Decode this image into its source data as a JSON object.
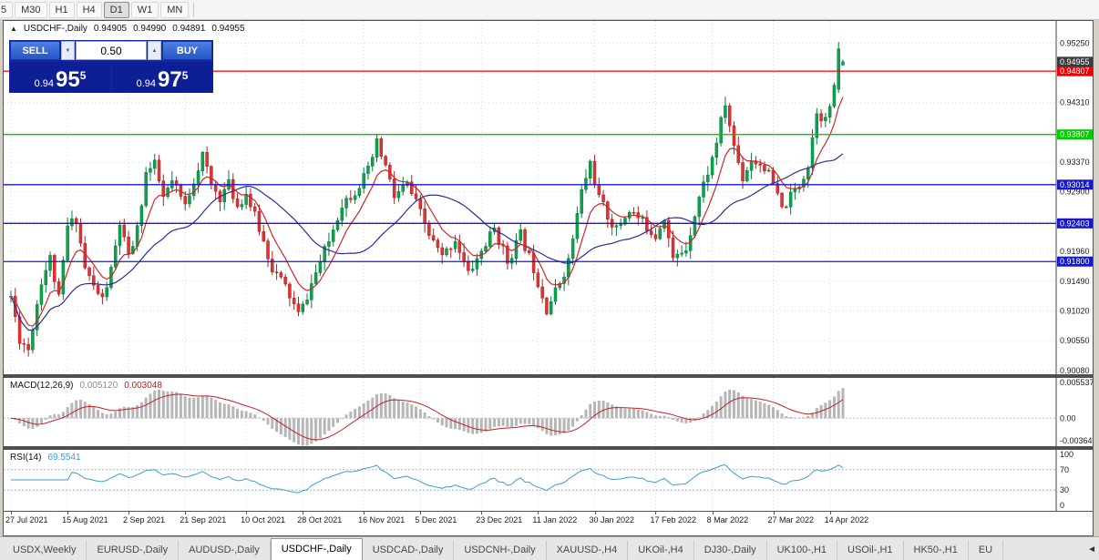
{
  "toolbar": {
    "timeframes": [
      {
        "label": "5",
        "active": false
      },
      {
        "label": "M30",
        "active": false
      },
      {
        "label": "H1",
        "active": false
      },
      {
        "label": "H4",
        "active": false
      },
      {
        "label": "D1",
        "active": true
      },
      {
        "label": "W1",
        "active": false
      },
      {
        "label": "MN",
        "active": false
      }
    ]
  },
  "one_click": {
    "collapse_icon": "▲",
    "sell_label": "SELL",
    "buy_label": "BUY",
    "volume": "0.50",
    "spin_down_icon": "▼",
    "spin_up_icon": "▲",
    "sell_price": {
      "small": "0.94",
      "big": "95",
      "sup": "5"
    },
    "buy_price": {
      "small": "0.94",
      "big": "97",
      "sup": "5"
    }
  },
  "main_pane": {
    "symbol": "USDCHF-,Daily",
    "ohlc": [
      "0.94905",
      "0.94990",
      "0.94891",
      "0.94955"
    ]
  },
  "macd_pane": {
    "label": "MACD(12,26,9)",
    "value_main": "0.005120",
    "value_signal": "0.003048",
    "axis": [
      {
        "text": "0.005537",
        "value": 0.005537
      },
      {
        "text": "0.00",
        "value": 0.0
      },
      {
        "text": "-0.00364",
        "value": -0.00364
      }
    ],
    "scale_max": 0.0062,
    "scale_min": -0.0043,
    "histogram_color": "#b6b6b6",
    "signal_color": "#c42222"
  },
  "rsi_pane": {
    "label": "RSI(14)",
    "value": "69.5541",
    "axis": [
      {
        "text": "100",
        "value": 100
      },
      {
        "text": "70",
        "value": 70
      },
      {
        "text": "30",
        "value": 30
      },
      {
        "text": "0",
        "value": 0
      }
    ],
    "levels": [
      70,
      30
    ],
    "line_color": "#3d9bd5",
    "level_color": "#9fb6cc"
  },
  "price_axis": {
    "min": 0.9002,
    "max": 0.956,
    "ticks": [
      "0.90080",
      "0.90550",
      "0.91020",
      "0.91490",
      "0.91960",
      "0.92430",
      "0.92900",
      "0.93370",
      "0.93840",
      "0.94310",
      "0.94780",
      "0.95250"
    ]
  },
  "time_axis": {
    "labels": [
      {
        "text": "27 Jul 2021",
        "bar": 0
      },
      {
        "text": "15 Aug 2021",
        "bar": 13
      },
      {
        "text": "2 Sep 2021",
        "bar": 27
      },
      {
        "text": "21 Sep 2021",
        "bar": 40
      },
      {
        "text": "10 Oct 2021",
        "bar": 54
      },
      {
        "text": "28 Oct 2021",
        "bar": 67
      },
      {
        "text": "16 Nov 2021",
        "bar": 81
      },
      {
        "text": "5 Dec 2021",
        "bar": 94
      },
      {
        "text": "23 Dec 2021",
        "bar": 108
      },
      {
        "text": "11 Jan 2022",
        "bar": 121
      },
      {
        "text": "30 Jan 2022",
        "bar": 134
      },
      {
        "text": "17 Feb 2022",
        "bar": 148
      },
      {
        "text": "8 Mar 2022",
        "bar": 161
      },
      {
        "text": "27 Mar 2022",
        "bar": 175
      },
      {
        "text": "14 Apr 2022",
        "bar": 188
      }
    ]
  },
  "hlines": [
    {
      "price": 0.94807,
      "text": "0.94807",
      "color": "#f00000"
    },
    {
      "price": 0.93807,
      "text": "0.93807",
      "color": "#00ce00"
    },
    {
      "price": 0.93014,
      "text": "0.93014",
      "color": "#1818c8"
    },
    {
      "price": 0.92403,
      "text": "0.92403",
      "color": "#1818c8"
    },
    {
      "price": 0.918,
      "text": "0.91800",
      "color": "#1818c8"
    }
  ],
  "current_price": {
    "price": 0.94955,
    "text": "0.94955",
    "color": "#3c3c3c"
  },
  "tabs": {
    "scroll_left_icon": "◄",
    "items": [
      {
        "label": "USDX,Weekly",
        "active": false
      },
      {
        "label": "EURUSD-,Daily",
        "active": false
      },
      {
        "label": "AUDUSD-,Daily",
        "active": false
      },
      {
        "label": "USDCHF-,Daily",
        "active": true
      },
      {
        "label": "USDCAD-,Daily",
        "active": false
      },
      {
        "label": "USDCNH-,Daily",
        "active": false
      },
      {
        "label": "XAUUSD-,H4",
        "active": false
      },
      {
        "label": "UKOil-,H4",
        "active": false
      },
      {
        "label": "DJ30-,Daily",
        "active": false
      },
      {
        "label": "UK100-,H1",
        "active": false
      },
      {
        "label": "USOil-,H1",
        "active": false
      },
      {
        "label": "HK50-,H1",
        "active": false
      },
      {
        "label": "EU",
        "active": false
      }
    ]
  },
  "colors": {
    "bull": "#0ca24e",
    "bull_stroke": "#087a3a",
    "bear": "#dd3333",
    "bear_stroke": "#aa2222",
    "ma_fast": "#d02828",
    "ma_slow": "#2c2c9c",
    "grid": "#d9d9d9",
    "axis_text": "#1a1a1a",
    "frame": "#444444"
  },
  "chart_data": {
    "type": "candlestick",
    "symbol": "USDCHF",
    "timeframe": "Daily",
    "title": "USDCHF-,Daily",
    "x_range": [
      "27 Jul 2021",
      "22 Apr 2022"
    ],
    "y_range": [
      0.9002,
      0.956
    ],
    "bars": 192,
    "seed": 11,
    "current_ohlc": {
      "open": 0.94905,
      "high": 0.9499,
      "low": 0.94891,
      "close": 0.94955
    },
    "close_anchors": [
      [
        0,
        0.9125
      ],
      [
        2,
        0.9058
      ],
      [
        4,
        0.9042
      ],
      [
        7,
        0.915
      ],
      [
        9,
        0.9185
      ],
      [
        11,
        0.912
      ],
      [
        13,
        0.9235
      ],
      [
        15,
        0.9248
      ],
      [
        17,
        0.917
      ],
      [
        19,
        0.914
      ],
      [
        21,
        0.912
      ],
      [
        23,
        0.9165
      ],
      [
        25,
        0.924
      ],
      [
        27,
        0.9185
      ],
      [
        29,
        0.923
      ],
      [
        31,
        0.932
      ],
      [
        33,
        0.9332
      ],
      [
        35,
        0.928
      ],
      [
        37,
        0.9305
      ],
      [
        40,
        0.9268
      ],
      [
        42,
        0.931
      ],
      [
        44,
        0.9348
      ],
      [
        46,
        0.93
      ],
      [
        48,
        0.9282
      ],
      [
        50,
        0.9302
      ],
      [
        52,
        0.9268
      ],
      [
        54,
        0.9288
      ],
      [
        57,
        0.9232
      ],
      [
        60,
        0.917
      ],
      [
        63,
        0.914
      ],
      [
        66,
        0.9096
      ],
      [
        67,
        0.9108
      ],
      [
        70,
        0.9162
      ],
      [
        73,
        0.9212
      ],
      [
        76,
        0.9272
      ],
      [
        79,
        0.9292
      ],
      [
        82,
        0.9322
      ],
      [
        84,
        0.9366
      ],
      [
        86,
        0.933
      ],
      [
        88,
        0.9282
      ],
      [
        91,
        0.9302
      ],
      [
        94,
        0.9256
      ],
      [
        96,
        0.9222
      ],
      [
        99,
        0.9186
      ],
      [
        102,
        0.9216
      ],
      [
        105,
        0.916
      ],
      [
        108,
        0.9196
      ],
      [
        111,
        0.9232
      ],
      [
        114,
        0.918
      ],
      [
        117,
        0.9222
      ],
      [
        120,
        0.917
      ],
      [
        123,
        0.9106
      ],
      [
        125,
        0.9132
      ],
      [
        128,
        0.918
      ],
      [
        131,
        0.929
      ],
      [
        133,
        0.9336
      ],
      [
        135,
        0.928
      ],
      [
        137,
        0.9252
      ],
      [
        139,
        0.923
      ],
      [
        142,
        0.9262
      ],
      [
        145,
        0.9242
      ],
      [
        148,
        0.9222
      ],
      [
        150,
        0.9252
      ],
      [
        152,
        0.9182
      ],
      [
        155,
        0.9202
      ],
      [
        158,
        0.9282
      ],
      [
        161,
        0.9342
      ],
      [
        164,
        0.9428
      ],
      [
        166,
        0.9362
      ],
      [
        168,
        0.9312
      ],
      [
        170,
        0.9342
      ],
      [
        173,
        0.933
      ],
      [
        175,
        0.9302
      ],
      [
        177,
        0.9262
      ],
      [
        181,
        0.9302
      ],
      [
        183,
        0.9332
      ],
      [
        185,
        0.942
      ],
      [
        187,
        0.9402
      ],
      [
        189,
        0.945
      ],
      [
        191,
        0.9496
      ]
    ],
    "overrides": [
      {
        "i": 190,
        "o": 0.9452,
        "h": 0.9527,
        "l": 0.9446,
        "c": 0.9516
      },
      {
        "i": 191,
        "o": 0.94905,
        "h": 0.9499,
        "l": 0.94891,
        "c": 0.94955
      }
    ],
    "overlays": [
      {
        "name": "ma-fast",
        "type": "ema",
        "period": 8,
        "color": "#d02828"
      },
      {
        "name": "ma-slow",
        "type": "sma",
        "period": 25,
        "color": "#2c2c9c"
      }
    ],
    "indicators": [
      {
        "name": "MACD",
        "params": [
          12,
          26,
          9
        ],
        "current_main": 0.00512,
        "current_signal": 0.003048
      },
      {
        "name": "RSI",
        "params": [
          14
        ],
        "current": 69.5541
      }
    ],
    "horizontal_lines": [
      0.94807,
      0.93807,
      0.93014,
      0.92403,
      0.918
    ],
    "legend_position": "top-left",
    "grid": true
  }
}
